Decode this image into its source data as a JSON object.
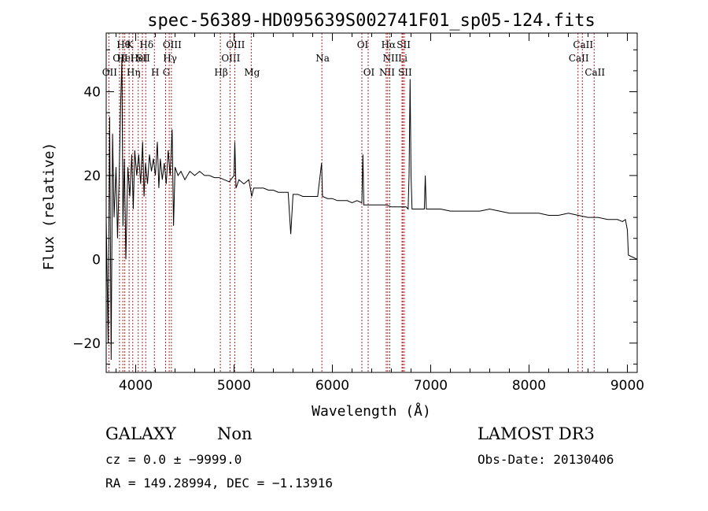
{
  "chart_data": {
    "type": "line",
    "title": "spec-56389-HD095639S002741F01_sp05-124.fits",
    "xlabel": "Wavelength (Å)",
    "ylabel": "Flux (relative)",
    "xlim": [
      3700,
      9100
    ],
    "ylim": [
      -27,
      54
    ],
    "x_ticks": [
      4000,
      5000,
      6000,
      7000,
      8000,
      9000
    ],
    "y_ticks": [
      -20,
      0,
      20,
      40
    ],
    "line_color": "#000000",
    "marker_color": "#b22222",
    "series": [
      {
        "values": [
          [
            3700,
            10
          ],
          [
            3720,
            -20
          ],
          [
            3735,
            34
          ],
          [
            3750,
            -24
          ],
          [
            3765,
            30
          ],
          [
            3780,
            10
          ],
          [
            3800,
            22
          ],
          [
            3815,
            5
          ],
          [
            3830,
            18
          ],
          [
            3845,
            35
          ],
          [
            3860,
            48
          ],
          [
            3870,
            8
          ],
          [
            3885,
            24
          ],
          [
            3900,
            0
          ],
          [
            3920,
            22
          ],
          [
            3940,
            15
          ],
          [
            3960,
            25
          ],
          [
            3975,
            12
          ],
          [
            3990,
            26
          ],
          [
            4010,
            20
          ],
          [
            4030,
            25
          ],
          [
            4050,
            18
          ],
          [
            4070,
            28
          ],
          [
            4085,
            15
          ],
          [
            4100,
            23
          ],
          [
            4120,
            18
          ],
          [
            4140,
            25
          ],
          [
            4160,
            21
          ],
          [
            4180,
            24
          ],
          [
            4200,
            20
          ],
          [
            4220,
            28
          ],
          [
            4235,
            17
          ],
          [
            4250,
            24
          ],
          [
            4270,
            19
          ],
          [
            4290,
            23
          ],
          [
            4310,
            18
          ],
          [
            4330,
            26
          ],
          [
            4350,
            20
          ],
          [
            4370,
            31
          ],
          [
            4385,
            8
          ],
          [
            4400,
            22
          ],
          [
            4430,
            20
          ],
          [
            4460,
            21
          ],
          [
            4500,
            19
          ],
          [
            4550,
            21
          ],
          [
            4600,
            20
          ],
          [
            4650,
            21
          ],
          [
            4700,
            20
          ],
          [
            4750,
            20
          ],
          [
            4800,
            19.5
          ],
          [
            4850,
            19.5
          ],
          [
            4900,
            19
          ],
          [
            4950,
            18.5
          ],
          [
            5000,
            20
          ],
          [
            5008,
            28
          ],
          [
            5020,
            17
          ],
          [
            5050,
            19
          ],
          [
            5100,
            18
          ],
          [
            5150,
            19
          ],
          [
            5180,
            15
          ],
          [
            5200,
            17
          ],
          [
            5250,
            17
          ],
          [
            5300,
            17
          ],
          [
            5350,
            16.5
          ],
          [
            5400,
            16.5
          ],
          [
            5450,
            16
          ],
          [
            5500,
            16
          ],
          [
            5550,
            16
          ],
          [
            5577,
            6
          ],
          [
            5600,
            15.5
          ],
          [
            5650,
            15.5
          ],
          [
            5700,
            15
          ],
          [
            5750,
            15
          ],
          [
            5800,
            15
          ],
          [
            5850,
            15
          ],
          [
            5890,
            23
          ],
          [
            5900,
            15
          ],
          [
            5950,
            14.5
          ],
          [
            6000,
            14.5
          ],
          [
            6050,
            14
          ],
          [
            6100,
            14
          ],
          [
            6150,
            14
          ],
          [
            6200,
            13.5
          ],
          [
            6250,
            14
          ],
          [
            6300,
            13.5
          ],
          [
            6310,
            25
          ],
          [
            6320,
            13
          ],
          [
            6350,
            13
          ],
          [
            6400,
            13
          ],
          [
            6450,
            13
          ],
          [
            6500,
            13
          ],
          [
            6550,
            13
          ],
          [
            6600,
            12.5
          ],
          [
            6650,
            12.5
          ],
          [
            6700,
            12.5
          ],
          [
            6750,
            12.5
          ],
          [
            6770,
            12
          ],
          [
            6780,
            20
          ],
          [
            6790,
            43
          ],
          [
            6800,
            20
          ],
          [
            6810,
            12
          ],
          [
            6850,
            12
          ],
          [
            6900,
            12
          ],
          [
            6935,
            12
          ],
          [
            6945,
            20
          ],
          [
            6955,
            12
          ],
          [
            7000,
            12
          ],
          [
            7100,
            12
          ],
          [
            7200,
            11.5
          ],
          [
            7300,
            11.5
          ],
          [
            7400,
            11.5
          ],
          [
            7500,
            11.5
          ],
          [
            7600,
            12
          ],
          [
            7700,
            11.5
          ],
          [
            7800,
            11
          ],
          [
            7900,
            11
          ],
          [
            8000,
            11
          ],
          [
            8100,
            11
          ],
          [
            8200,
            10.5
          ],
          [
            8300,
            10.5
          ],
          [
            8400,
            11
          ],
          [
            8500,
            10.5
          ],
          [
            8600,
            10
          ],
          [
            8700,
            10
          ],
          [
            8800,
            9.5
          ],
          [
            8900,
            9.5
          ],
          [
            8950,
            9
          ],
          [
            8980,
            9.5
          ],
          [
            9000,
            7
          ],
          [
            9010,
            1
          ],
          [
            9100,
            0
          ]
        ]
      }
    ],
    "lines": [
      {
        "w": 3727,
        "labels": [
          "OII"
        ],
        "row": 2
      },
      {
        "w": 3835,
        "labels": [
          "OII"
        ],
        "row": 1
      },
      {
        "w": 3869,
        "labels": [
          "Hθ"
        ],
        "row": 0
      },
      {
        "w": 3889,
        "labels": [
          "HeI"
        ],
        "row": 1
      },
      {
        "w": 3933,
        "labels": [
          "K"
        ],
        "row": 0
      },
      {
        "w": 3970,
        "labels": [
          "Hη"
        ],
        "row": 2
      },
      {
        "w": 4026,
        "labels": [
          "HeI"
        ],
        "row": 1
      },
      {
        "w": 4068,
        "labels": [
          "SII"
        ],
        "row": 1
      },
      {
        "w": 4102,
        "labels": [
          "Hδ"
        ],
        "row": 0
      },
      {
        "w": 4190,
        "labels": [
          "H"
        ],
        "row": 2
      },
      {
        "w": 4304,
        "labels": [
          "G"
        ],
        "row": 2
      },
      {
        "w": 4341,
        "labels": [
          "Hγ"
        ],
        "row": 1
      },
      {
        "w": 4363,
        "labels": [
          "OIII"
        ],
        "row": 0
      },
      {
        "w": 4861,
        "labels": [
          "Hβ"
        ],
        "row": 2
      },
      {
        "w": 4959,
        "labels": [
          "OIII"
        ],
        "row": 1
      },
      {
        "w": 5007,
        "labels": [
          "OIII"
        ],
        "row": 0
      },
      {
        "w": 5175,
        "labels": [
          "Mg"
        ],
        "row": 2
      },
      {
        "w": 5893,
        "labels": [
          "Na"
        ],
        "row": 1
      },
      {
        "w": 6300,
        "labels": [
          "OI"
        ],
        "row": 0
      },
      {
        "w": 6364,
        "labels": [
          "OI"
        ],
        "row": 2
      },
      {
        "w": 6548,
        "labels": [
          "NII"
        ],
        "row": 2
      },
      {
        "w": 6563,
        "labels": [
          "Hα"
        ],
        "row": 0
      },
      {
        "w": 6584,
        "labels": [
          "NII"
        ],
        "row": 1
      },
      {
        "w": 6708,
        "labels": [
          "Li"
        ],
        "row": 1
      },
      {
        "w": 6717,
        "labels": [
          "SII"
        ],
        "row": 0
      },
      {
        "w": 6731,
        "labels": [
          "SII"
        ],
        "row": 2
      },
      {
        "w": 8498,
        "labels": [
          "CaII"
        ],
        "row": 1
      },
      {
        "w": 8542,
        "labels": [
          "CaII"
        ],
        "row": 0
      },
      {
        "w": 8662,
        "labels": [
          "CaII"
        ],
        "row": 2
      }
    ]
  },
  "info": {
    "object_class": "GALAXY",
    "subclass": "Non",
    "survey": "LAMOST DR3",
    "cz": "cz = 0.0 ± −9999.0",
    "obs_date": "Obs-Date: 20130406",
    "coords": "RA = 149.28994, DEC =  −1.13916"
  }
}
